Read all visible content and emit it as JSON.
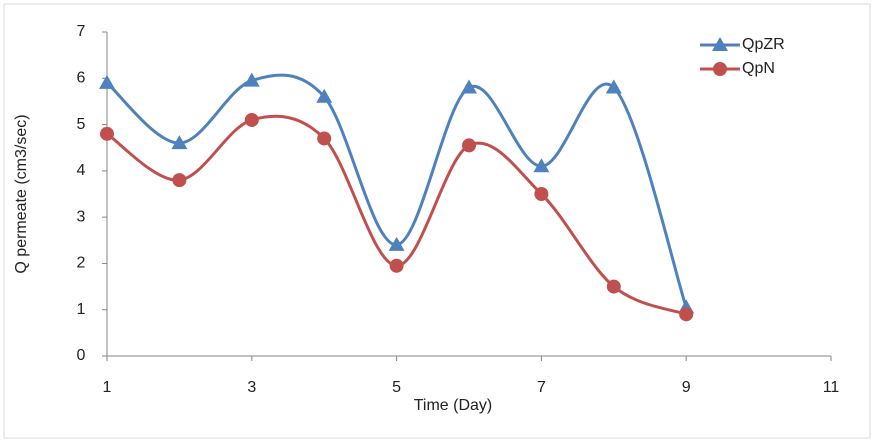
{
  "chart_data": {
    "type": "line",
    "x_label": "Time (Day)",
    "y_label": "Q permeate (cm3/sec)",
    "xlim": [
      1,
      11
    ],
    "xticks": [
      1,
      3,
      5,
      7,
      9,
      11
    ],
    "ylim": [
      0,
      7
    ],
    "yticks": [
      0,
      1,
      2,
      3,
      4,
      5,
      6,
      7
    ],
    "smooth": true,
    "legend": "top-right",
    "series": [
      {
        "name": "QpZR",
        "color": "#4f81bd",
        "marker": "triangle",
        "x": [
          1,
          2,
          3,
          4,
          5,
          6,
          7,
          8,
          9
        ],
        "values": [
          5.9,
          4.6,
          5.95,
          5.6,
          2.4,
          5.8,
          4.1,
          5.8,
          1.05
        ]
      },
      {
        "name": "QpN",
        "color": "#c0504d",
        "marker": "circle",
        "x": [
          1,
          2,
          3,
          4,
          5,
          6,
          7,
          8,
          9
        ],
        "values": [
          4.8,
          3.8,
          5.1,
          4.7,
          1.95,
          4.55,
          3.5,
          1.5,
          0.9
        ]
      }
    ]
  }
}
